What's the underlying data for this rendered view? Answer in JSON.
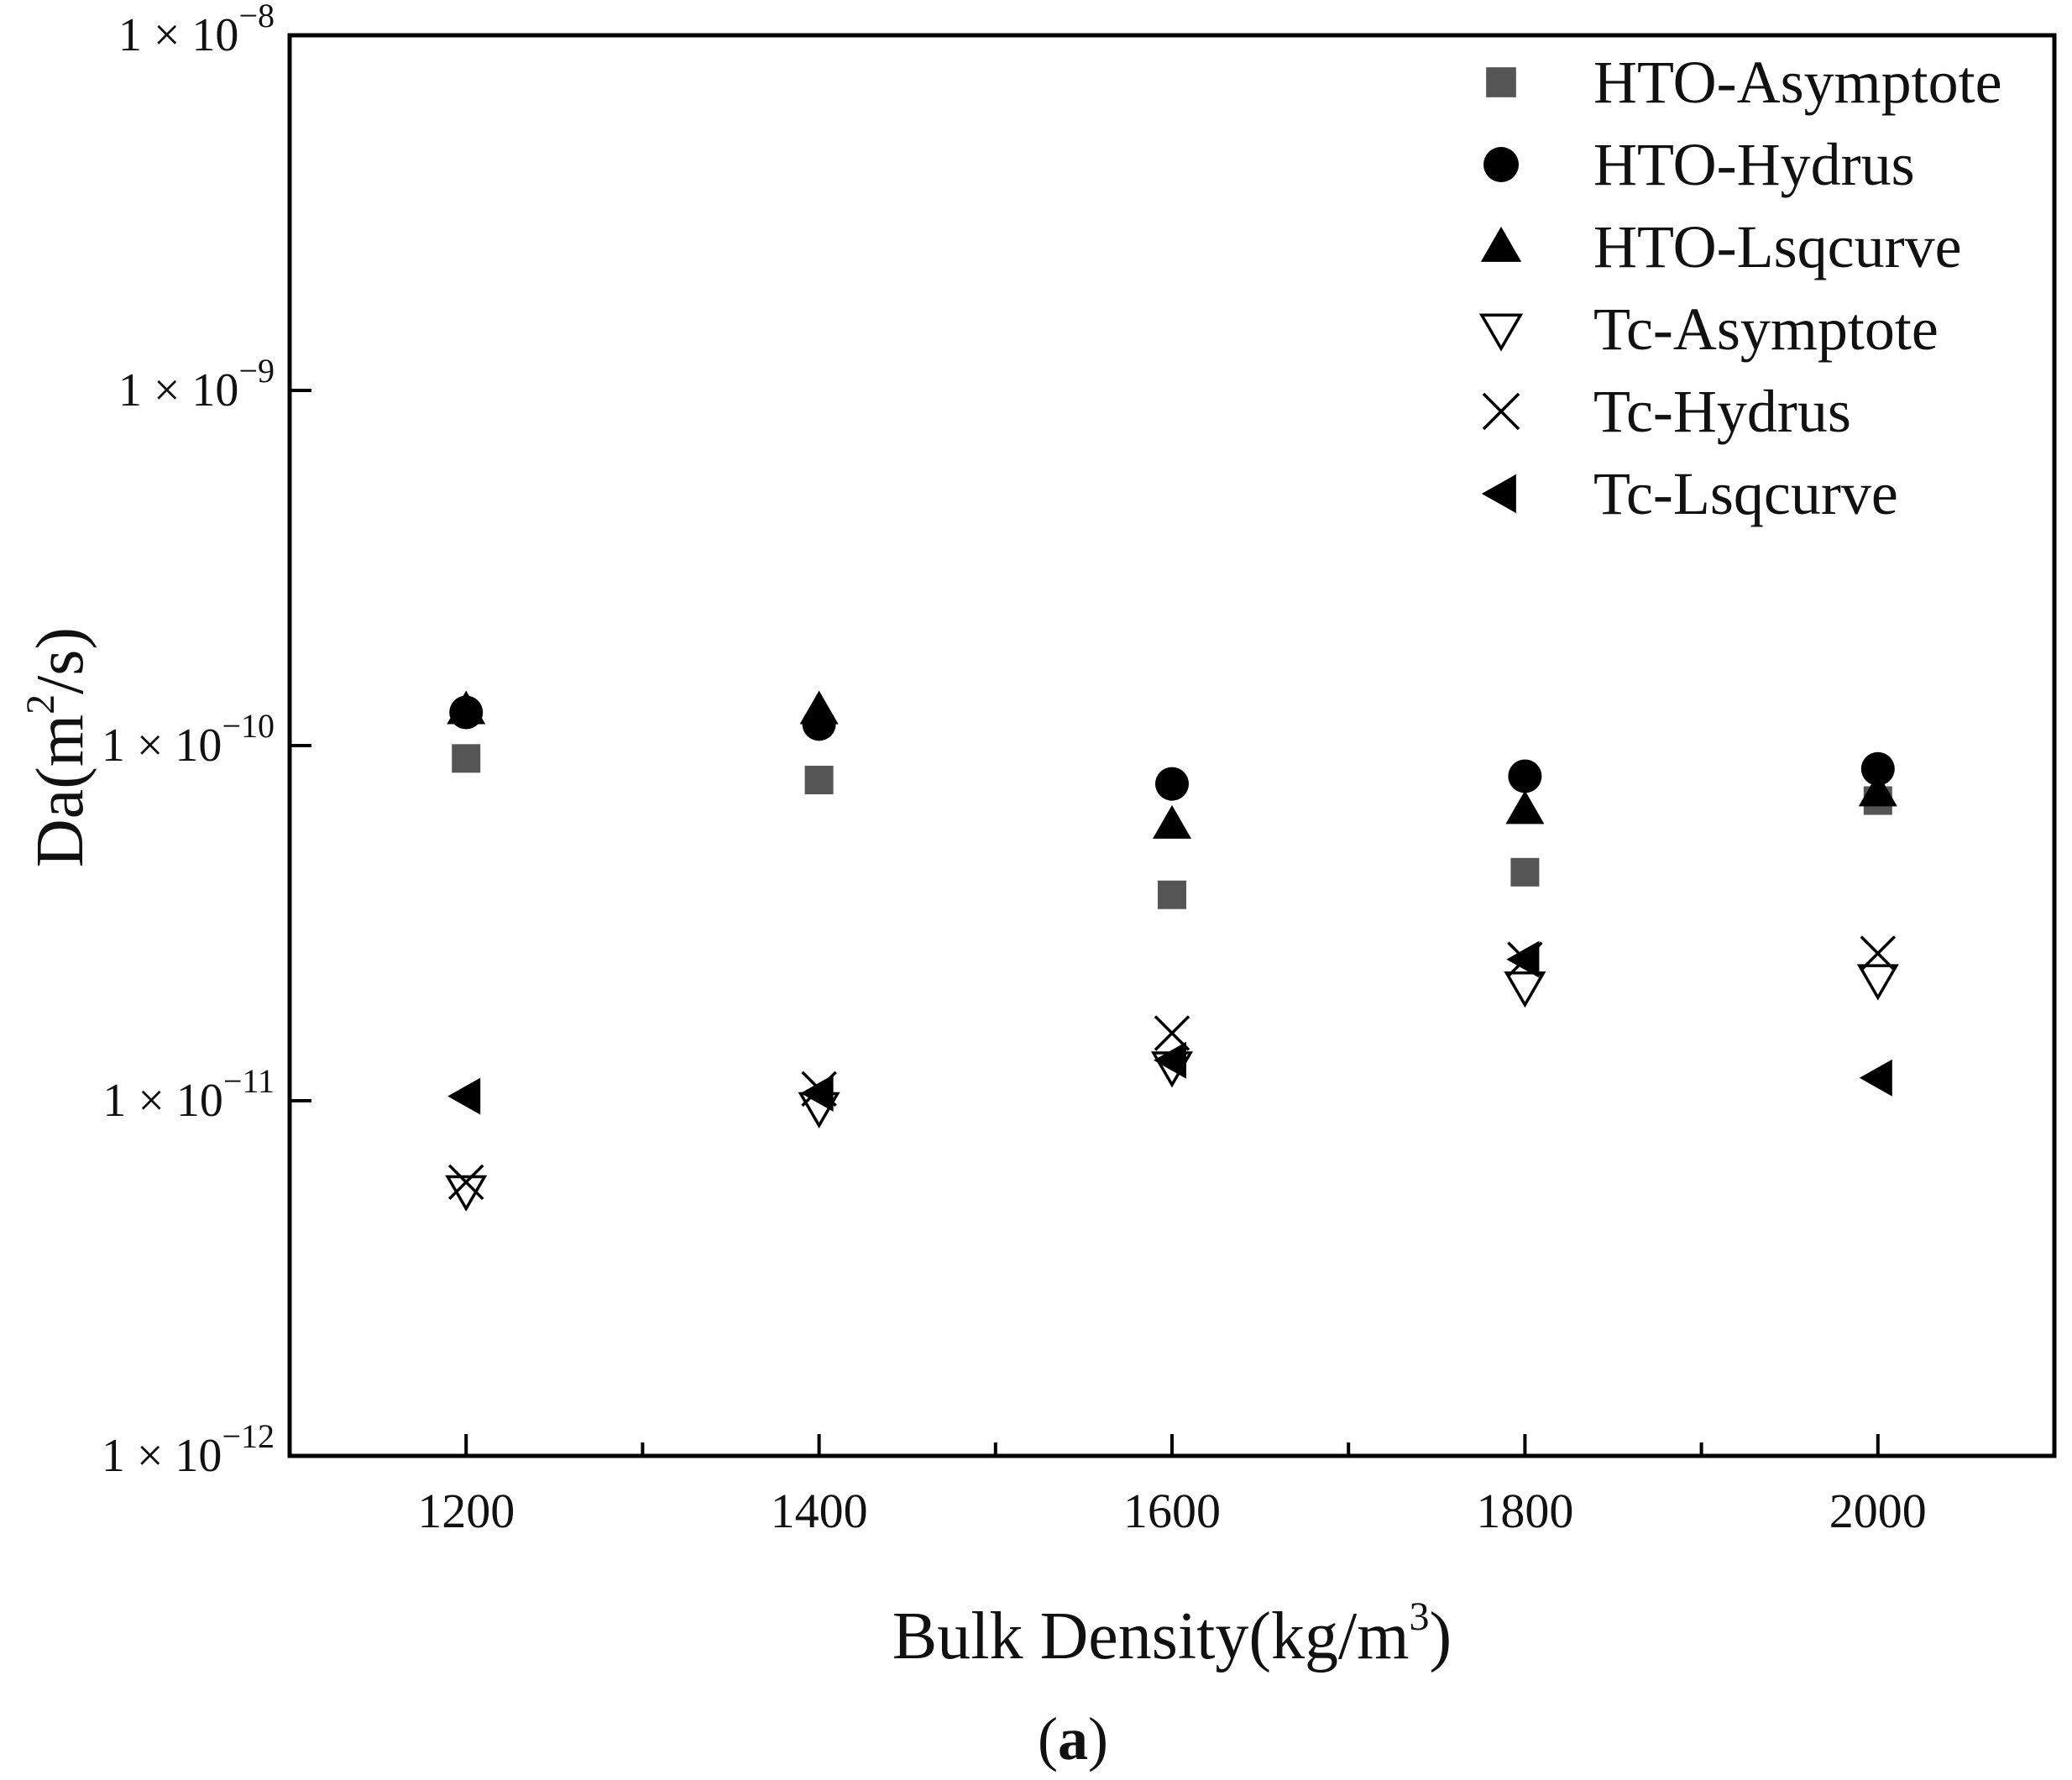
{
  "chart_data": {
    "type": "scatter",
    "xlabel": "Bulk Density(kg/m³)",
    "xlabel_main": "Bulk Density(kg/m",
    "xlabel_sup": "3",
    "xlabel_end": ")",
    "ylabel": "Da(m²/s)",
    "ylabel_main": "Da(m",
    "ylabel_sup": "2",
    "ylabel_end": "/s)",
    "caption_open": "(",
    "caption_letter": "a",
    "caption_close": ")",
    "xlim": [
      1100,
      2100
    ],
    "ylim": [
      1e-12,
      1e-08
    ],
    "yscale": "log",
    "grid": false,
    "legend_position": "top-right",
    "x_ticks": [
      1200,
      1400,
      1600,
      1800,
      2000
    ],
    "x_tick_labels": [
      "1200",
      "1400",
      "1600",
      "1800",
      "2000"
    ],
    "y_ticks": [
      1e-12,
      1e-11,
      1e-10,
      1e-09,
      1e-08
    ],
    "y_tick_labels": [
      {
        "base": "1 × 10",
        "exp": "−12"
      },
      {
        "base": "1 × 10",
        "exp": "−11"
      },
      {
        "base": "1 × 10",
        "exp": "−10"
      },
      {
        "base": "1 × 10",
        "exp": "−9"
      },
      {
        "base": "1 × 10",
        "exp": "−8"
      }
    ],
    "series": [
      {
        "name": "HTO-Asymptote",
        "marker": "square",
        "color": "#555555",
        "x": [
          1200,
          1400,
          1600,
          1800,
          2000
        ],
        "y": [
          9.2e-11,
          8e-11,
          3.8e-11,
          4.4e-11,
          7e-11
        ]
      },
      {
        "name": "HTO-Hydrus",
        "marker": "circle",
        "color": "#000000",
        "x": [
          1200,
          1400,
          1600,
          1800,
          2000
        ],
        "y": [
          1.24e-10,
          1.15e-10,
          7.8e-11,
          8.2e-11,
          8.6e-11
        ]
      },
      {
        "name": "HTO-Lsqcurve",
        "marker": "triangle-up",
        "color": "#000000",
        "x": [
          1200,
          1400,
          1600,
          1800,
          2000
        ],
        "y": [
          1.26e-10,
          1.26e-10,
          6e-11,
          6.6e-11,
          7.4e-11
        ]
      },
      {
        "name": "Tc-Asymptote",
        "marker": "triangle-down-open",
        "color": "#000000",
        "x": [
          1200,
          1400,
          1600,
          1800,
          2000
        ],
        "y": [
          5.6e-12,
          9.6e-12,
          1.25e-11,
          2.1e-11,
          2.2e-11
        ]
      },
      {
        "name": "Tc-Hydrus",
        "marker": "x",
        "color": "#000000",
        "x": [
          1200,
          1400,
          1600,
          1800,
          2000
        ],
        "y": [
          5.9e-12,
          1.08e-11,
          1.55e-11,
          2.5e-11,
          2.6e-11
        ]
      },
      {
        "name": "Tc-Lsqcurve",
        "marker": "triangle-left",
        "color": "#000000",
        "x": [
          1200,
          1400,
          1600,
          1800,
          2000
        ],
        "y": [
          1.03e-11,
          1.05e-11,
          1.3e-11,
          2.5e-11,
          1.16e-11
        ]
      }
    ]
  }
}
